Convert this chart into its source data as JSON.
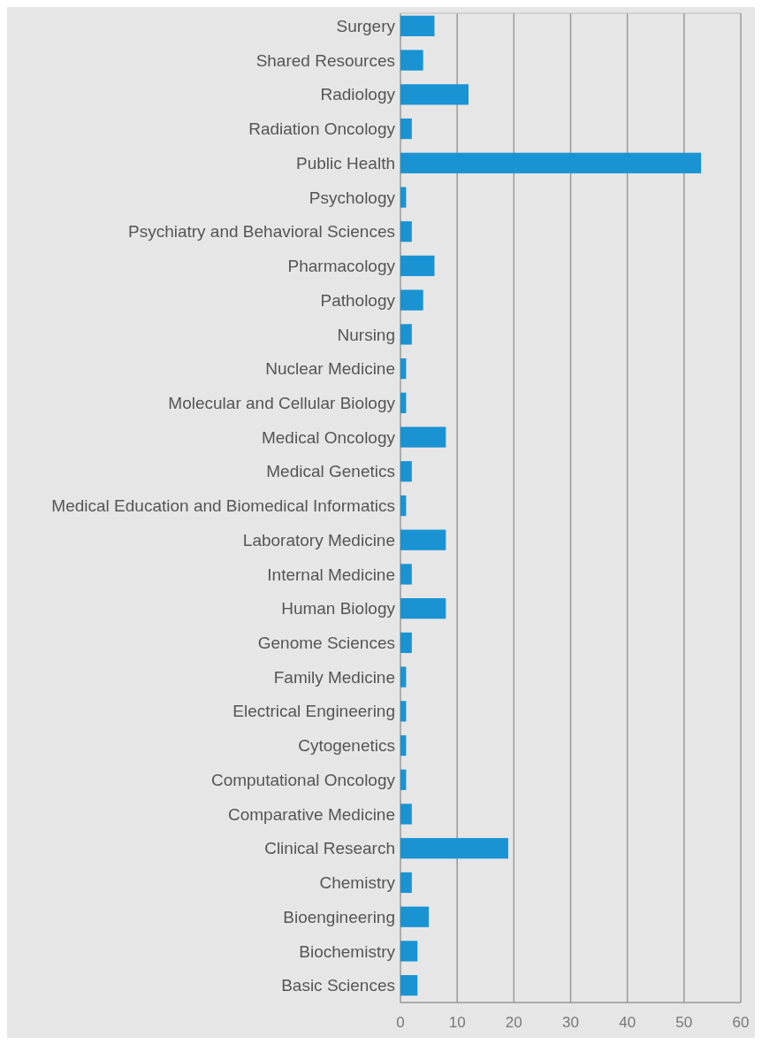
{
  "chart_data": {
    "type": "bar",
    "orientation": "horizontal",
    "color": "#1a93d2",
    "categories": [
      "Surgery",
      "Shared Resources",
      "Radiology",
      "Radiation Oncology",
      "Public Health",
      "Psychology",
      "Psychiatry and Behavioral Sciences",
      "Pharmacology",
      "Pathology",
      "Nursing",
      "Nuclear Medicine",
      "Molecular and Cellular Biology",
      "Medical Oncology",
      "Medical Genetics",
      "Medical Education and Biomedical Informatics",
      "Laboratory Medicine",
      "Internal Medicine",
      "Human Biology",
      "Genome Sciences",
      "Family Medicine",
      "Electrical Engineering",
      "Cytogenetics",
      "Computational Oncology",
      "Comparative Medicine",
      "Clinical Research",
      "Chemistry",
      "Bioengineering",
      "Biochemistry",
      "Basic Sciences"
    ],
    "values": [
      6,
      4,
      12,
      2,
      53,
      1,
      2,
      6,
      4,
      2,
      1,
      1,
      8,
      2,
      1,
      8,
      2,
      8,
      2,
      1,
      1,
      1,
      1,
      2,
      19,
      2,
      5,
      3,
      3
    ],
    "xlim": [
      0,
      60
    ],
    "xticks": [
      0,
      10,
      20,
      30,
      40,
      50,
      60
    ],
    "grid": "x"
  }
}
